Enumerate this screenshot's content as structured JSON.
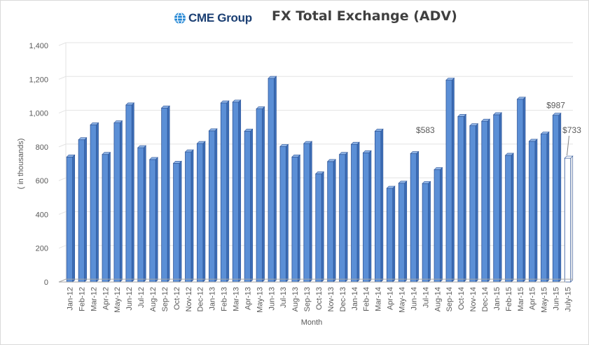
{
  "colors": {
    "bar_fill": "#5b8fd6",
    "bar_top": "#8fb4e6",
    "bar_side": "#3d6fb8",
    "bar_stroke": "#2f5597",
    "last_bar_fill": "#ffffff",
    "grid": "#e3e3e3",
    "axis": "#a6a6a6",
    "logo_blue": "#1e84d4",
    "logo_text": "#1b3f73"
  },
  "logo": {
    "text": "CME Group",
    "icon": "globe-icon"
  },
  "chart_data": {
    "type": "bar",
    "title": "FX Total Exchange (ADV)",
    "xlabel": "Month",
    "ylabel": "( in thousands)",
    "ylim": [
      0,
      1400
    ],
    "yticks": [
      0,
      200,
      400,
      600,
      800,
      1000,
      1200,
      1400
    ],
    "ytick_labels": [
      "0",
      "200",
      "400",
      "600",
      "800",
      "1,000",
      "1,200",
      "1,400"
    ],
    "grid": true,
    "legend": "none",
    "categories": [
      "Jan-12",
      "Feb-12",
      "Mar-12",
      "Apr-12",
      "May-12",
      "Jun-12",
      "Jul-12",
      "Aug-12",
      "Sep-12",
      "Oct-12",
      "Nov-12",
      "Dec-12",
      "Jan-13",
      "Feb-13",
      "Mar-13",
      "Apr-13",
      "May-13",
      "Jun-13",
      "Jul-13",
      "Aug-13",
      "Sep-13",
      "Oct-13",
      "Nov-13",
      "Dec-13",
      "Jan-14",
      "Feb-14",
      "Mar-14",
      "Apr-14",
      "May-14",
      "Jun-14",
      "Jul-14",
      "Aug-14",
      "Sep-14",
      "Oct-14",
      "Nov-14",
      "Dec-14",
      "Jan-15",
      "Feb-15",
      "Mar-15",
      "Apr-15",
      "May-15",
      "Jun-15",
      "July-15"
    ],
    "values": [
      740,
      842,
      930,
      755,
      942,
      1048,
      795,
      725,
      1030,
      703,
      770,
      820,
      895,
      1060,
      1065,
      893,
      1025,
      1205,
      802,
      740,
      820,
      640,
      713,
      755,
      815,
      765,
      893,
      555,
      585,
      760,
      583,
      665,
      1195,
      980,
      925,
      952,
      990,
      750,
      1082,
      833,
      876,
      987,
      733
    ],
    "annotations": [
      {
        "category": "Jul-14",
        "text": "$583"
      },
      {
        "category": "Jun-15",
        "text": "$987"
      },
      {
        "category": "July-15",
        "text": "$733"
      }
    ]
  }
}
